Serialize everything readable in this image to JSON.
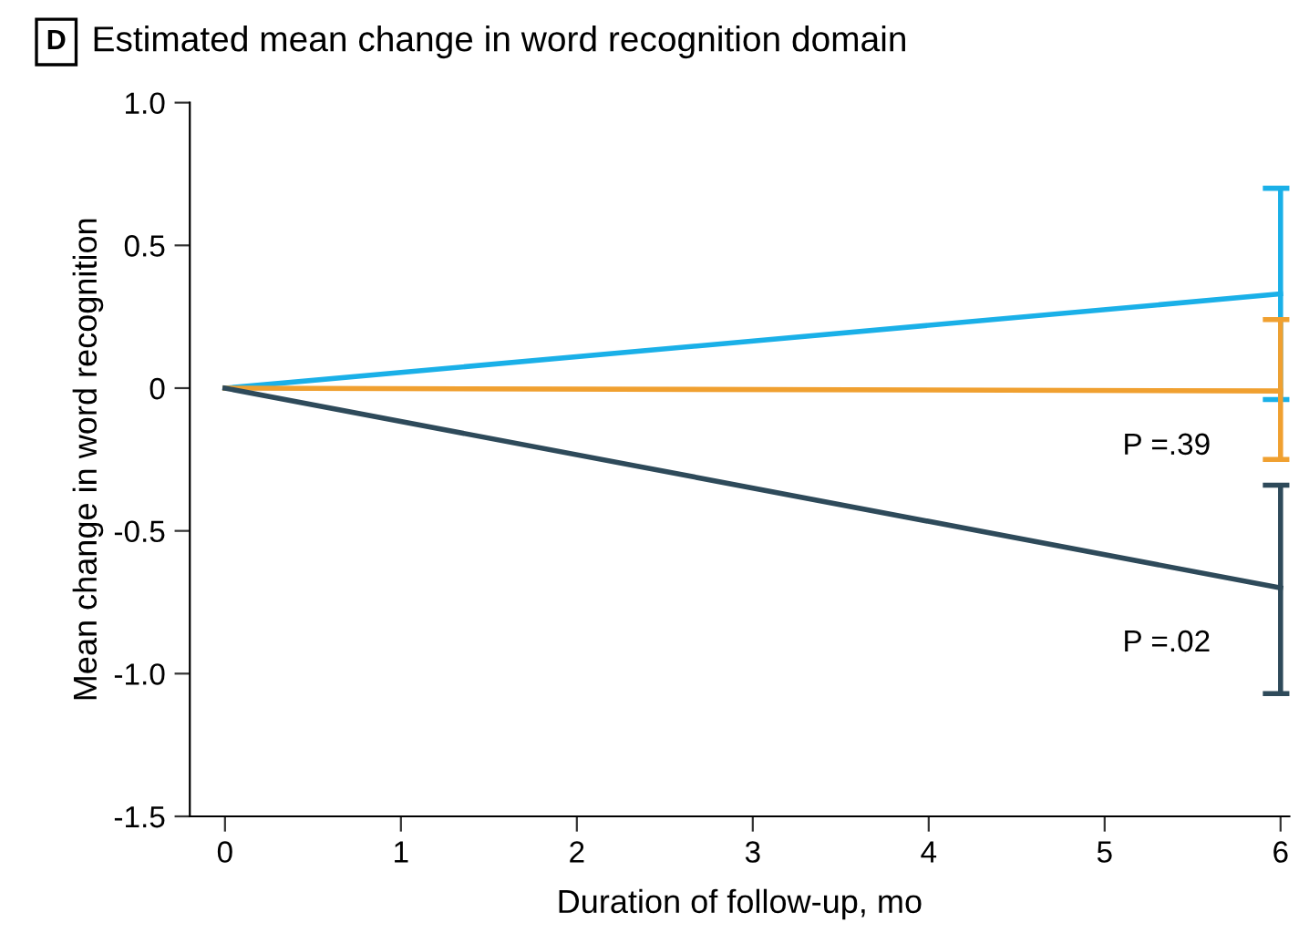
{
  "chart_data": {
    "type": "line",
    "title": "Estimated mean change in word recognition domain",
    "xlabel": "Duration of follow-up, mo",
    "ylabel": "Mean change in word recognition",
    "x": [
      0,
      6
    ],
    "series": [
      {
        "color": "#1ab0e8",
        "values": [
          0,
          0.33
        ],
        "errors": [
          null,
          [
            -0.04,
            0.7
          ]
        ]
      },
      {
        "color": "#f0a030",
        "values": [
          0,
          -0.01
        ],
        "errors": [
          null,
          [
            -0.25,
            0.24
          ]
        ]
      },
      {
        "color": "#2e4a5a",
        "values": [
          0,
          -0.7
        ],
        "errors": [
          null,
          [
            -1.07,
            -0.34
          ]
        ]
      }
    ],
    "xlim": [
      -0.2,
      6.05
    ],
    "xticks": [
      0,
      1,
      2,
      3,
      4,
      5,
      6
    ],
    "ylim": [
      -1.5,
      1.0
    ],
    "yticks": [
      {
        "value": -1.5,
        "label": "-1.5"
      },
      {
        "value": -1.0,
        "label": "-1.0"
      },
      {
        "value": -0.5,
        "label": "-0.5"
      },
      0,
      {
        "value": 0.5,
        "label": "0.5"
      },
      {
        "value": 1.0,
        "label": "1.0"
      }
    ],
    "grid": false,
    "legend": false,
    "marker": "none",
    "line_style": "solid",
    "annotations": [
      "D",
      "P =.39",
      "P =.02"
    ]
  }
}
